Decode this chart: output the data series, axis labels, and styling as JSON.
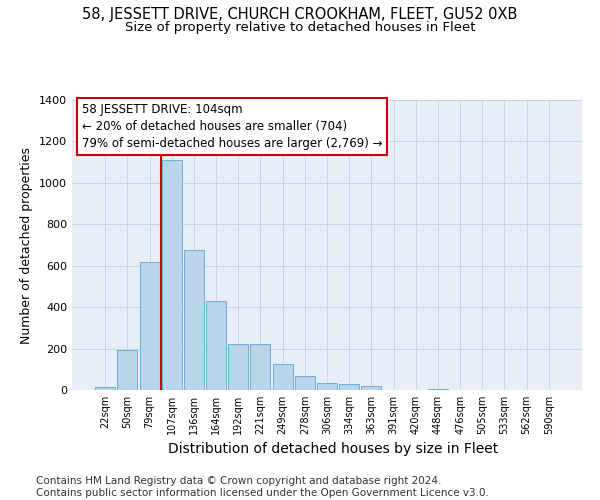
{
  "title": "58, JESSETT DRIVE, CHURCH CROOKHAM, FLEET, GU52 0XB",
  "subtitle": "Size of property relative to detached houses in Fleet",
  "xlabel": "Distribution of detached houses by size in Fleet",
  "ylabel": "Number of detached properties",
  "categories": [
    "22sqm",
    "50sqm",
    "79sqm",
    "107sqm",
    "136sqm",
    "164sqm",
    "192sqm",
    "221sqm",
    "249sqm",
    "278sqm",
    "306sqm",
    "334sqm",
    "363sqm",
    "391sqm",
    "420sqm",
    "448sqm",
    "476sqm",
    "505sqm",
    "533sqm",
    "562sqm",
    "590sqm"
  ],
  "values": [
    15,
    195,
    620,
    1110,
    675,
    430,
    220,
    220,
    125,
    70,
    35,
    30,
    20,
    0,
    0,
    5,
    0,
    0,
    0,
    0,
    0
  ],
  "bar_color": "#bad4ec",
  "bar_edge_color": "#6aaed6",
  "vline_x": 2.5,
  "vline_color": "#cc0000",
  "annotation_text": "58 JESSETT DRIVE: 104sqm\n← 20% of detached houses are smaller (704)\n79% of semi-detached houses are larger (2,769) →",
  "annotation_box_color": "#ffffff",
  "annotation_box_edge": "#cc0000",
  "ylim": [
    0,
    1400
  ],
  "yticks": [
    0,
    200,
    400,
    600,
    800,
    1000,
    1200,
    1400
  ],
  "background_color": "#e8eef8",
  "footer": "Contains HM Land Registry data © Crown copyright and database right 2024.\nContains public sector information licensed under the Open Government Licence v3.0.",
  "title_fontsize": 10.5,
  "subtitle_fontsize": 9.5,
  "xlabel_fontsize": 10,
  "ylabel_fontsize": 9,
  "footer_fontsize": 7.5,
  "annotation_fontsize": 8.5
}
